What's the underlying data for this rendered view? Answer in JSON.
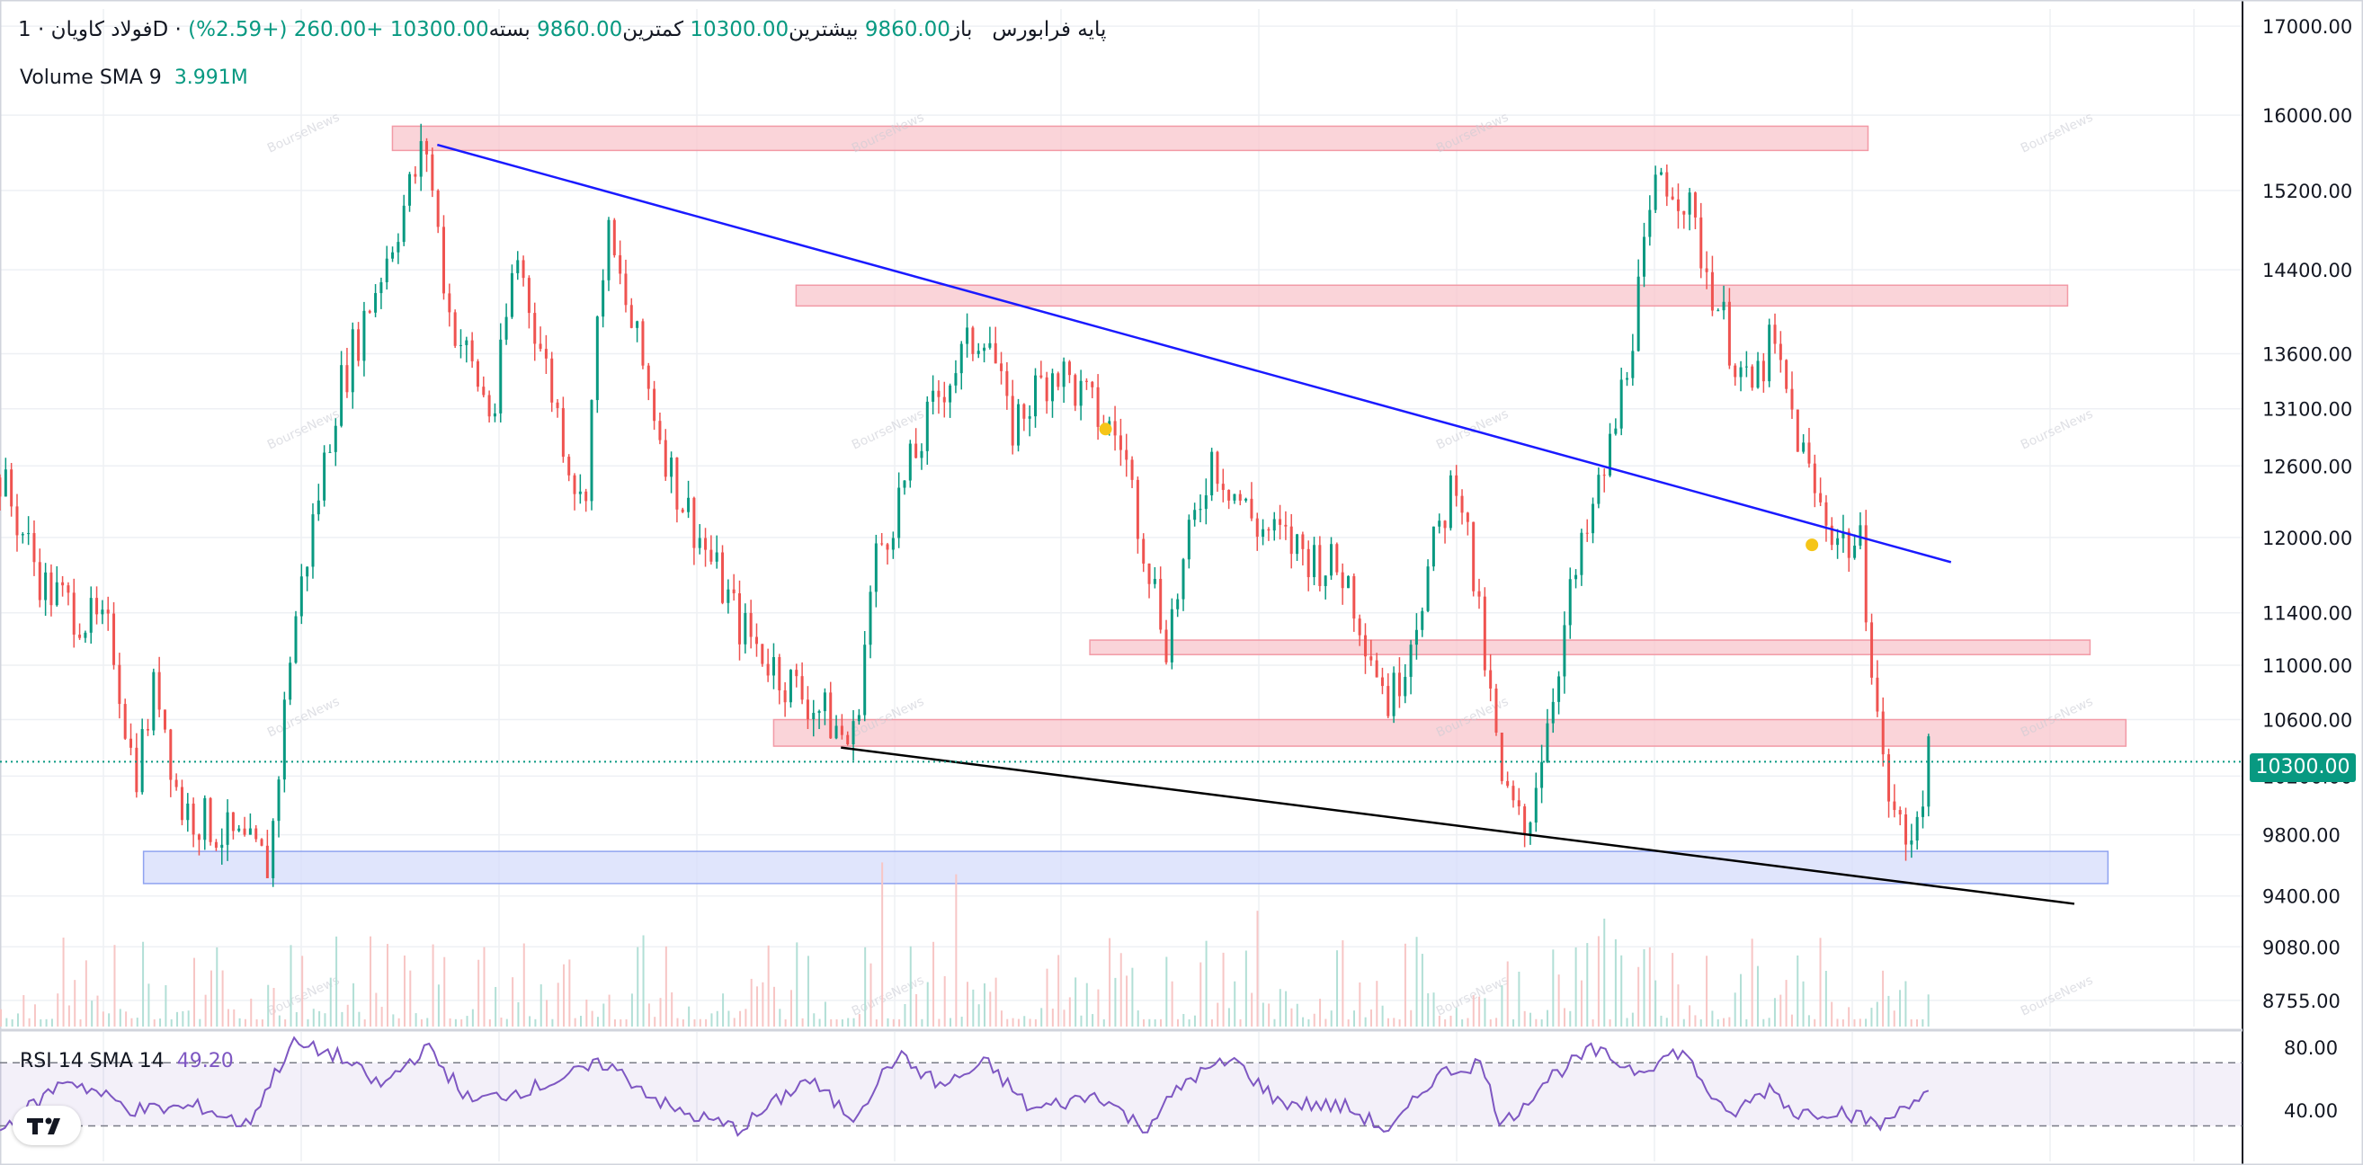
{
  "header": {
    "symbol": "فولاد کاویان",
    "sep1": "·",
    "interval": "1D",
    "sep2": "·",
    "market": "پایه فرابورس",
    "open_label": "باز",
    "open_value": "9860.00",
    "high_label": "بیشترین",
    "high_value": "10300.00",
    "low_label": "کمترین",
    "low_value": "9860.00",
    "close_label": "بسته",
    "close_value": "10300.00",
    "change": "+260.00",
    "change_pct": "(+2.59%)"
  },
  "volume_indicator": {
    "label": "Volume SMA 9",
    "value": "3.991M"
  },
  "rsi_indicator": {
    "label": "RSI 14 SMA 14",
    "value": "49.20"
  },
  "current_price": "10300.00",
  "watermark": "BourseNews",
  "colors": {
    "up": "#089981",
    "down": "#ef5350",
    "accent": "#089981",
    "trend_blue": "#1a1aff",
    "zone_red": "#f8c6cc",
    "zone_blue": "#d6dcfb",
    "rsi": "#7e57c2"
  },
  "chart_data": {
    "type": "candlestick",
    "y_axis": {
      "scale": "log",
      "ticks": [
        "17000.00",
        "16000.00",
        "15200.00",
        "14400.00",
        "13600.00",
        "13100.00",
        "12600.00",
        "12000.00",
        "11400.00",
        "11000.00",
        "10600.00",
        "10200.00",
        "9800.00",
        "9400.00",
        "9080.00",
        "8755.00"
      ],
      "range": [
        8600,
        17200
      ]
    },
    "price_path": [
      [
        0,
        12500
      ],
      [
        0.02,
        11600
      ],
      [
        0.05,
        11200
      ],
      [
        0.06,
        10200
      ],
      [
        0.07,
        10900
      ],
      [
        0.08,
        10000
      ],
      [
        0.11,
        9700
      ],
      [
        0.12,
        9600
      ],
      [
        0.13,
        11200
      ],
      [
        0.15,
        13200
      ],
      [
        0.19,
        15700
      ],
      [
        0.2,
        14000
      ],
      [
        0.22,
        13000
      ],
      [
        0.23,
        14600
      ],
      [
        0.26,
        12200
      ],
      [
        0.27,
        14800
      ],
      [
        0.3,
        12500
      ],
      [
        0.33,
        11300
      ],
      [
        0.35,
        10900
      ],
      [
        0.37,
        10600
      ],
      [
        0.38,
        10400
      ],
      [
        0.39,
        11800
      ],
      [
        0.42,
        13300
      ],
      [
        0.44,
        13900
      ],
      [
        0.45,
        12900
      ],
      [
        0.47,
        13500
      ],
      [
        0.5,
        12800
      ],
      [
        0.52,
        11200
      ],
      [
        0.54,
        12700
      ],
      [
        0.56,
        12100
      ],
      [
        0.58,
        11900
      ],
      [
        0.6,
        11700
      ],
      [
        0.62,
        10700
      ],
      [
        0.63,
        11300
      ],
      [
        0.65,
        12600
      ],
      [
        0.67,
        10100
      ],
      [
        0.68,
        9800
      ],
      [
        0.7,
        11500
      ],
      [
        0.72,
        12900
      ],
      [
        0.74,
        15400
      ],
      [
        0.75,
        15200
      ],
      [
        0.77,
        13800
      ],
      [
        0.78,
        13200
      ],
      [
        0.79,
        13700
      ],
      [
        0.81,
        12300
      ],
      [
        0.82,
        12000
      ],
      [
        0.83,
        11900
      ],
      [
        0.84,
        10200
      ],
      [
        0.85,
        9700
      ],
      [
        0.86,
        10300
      ]
    ],
    "trendlines": [
      {
        "name": "upper",
        "color": "#1a1aff",
        "from": [
          0.195,
          15680
        ],
        "to": [
          0.87,
          11800
        ]
      },
      {
        "name": "lower",
        "color": "#000000",
        "from": [
          0.375,
          10400
        ],
        "to": [
          0.925,
          9350
        ]
      }
    ],
    "zones": [
      {
        "color": "red",
        "from_x": 0.175,
        "to_x": 0.833,
        "low": 15620,
        "high": 15880
      },
      {
        "color": "red",
        "from_x": 0.355,
        "to_x": 0.922,
        "low": 14050,
        "high": 14250
      },
      {
        "color": "red",
        "from_x": 0.486,
        "to_x": 0.932,
        "low": 11080,
        "high": 11190
      },
      {
        "color": "red",
        "from_x": 0.345,
        "to_x": 0.948,
        "low": 10410,
        "high": 10600
      },
      {
        "color": "blue",
        "from_x": 0.064,
        "to_x": 0.94,
        "low": 9480,
        "high": 9690
      }
    ],
    "markers": [
      {
        "x": 0.493,
        "price": 12920
      },
      {
        "x": 0.808,
        "price": 11940
      }
    ],
    "rsi": {
      "ticks": [
        "80.00",
        "40.00"
      ],
      "upper_band": 70,
      "lower_band": 30,
      "path": [
        [
          0,
          27
        ],
        [
          0.03,
          60
        ],
        [
          0.06,
          40
        ],
        [
          0.09,
          42
        ],
        [
          0.11,
          30
        ],
        [
          0.13,
          82
        ],
        [
          0.15,
          75
        ],
        [
          0.17,
          55
        ],
        [
          0.19,
          80
        ],
        [
          0.21,
          45
        ],
        [
          0.24,
          55
        ],
        [
          0.27,
          70
        ],
        [
          0.3,
          40
        ],
        [
          0.33,
          28
        ],
        [
          0.36,
          60
        ],
        [
          0.38,
          35
        ],
        [
          0.4,
          75
        ],
        [
          0.42,
          55
        ],
        [
          0.44,
          70
        ],
        [
          0.46,
          40
        ],
        [
          0.49,
          50
        ],
        [
          0.51,
          28
        ],
        [
          0.53,
          60
        ],
        [
          0.55,
          72
        ],
        [
          0.57,
          45
        ],
        [
          0.6,
          42
        ],
        [
          0.62,
          26
        ],
        [
          0.64,
          62
        ],
        [
          0.66,
          70
        ],
        [
          0.67,
          30
        ],
        [
          0.69,
          60
        ],
        [
          0.71,
          78
        ],
        [
          0.73,
          65
        ],
        [
          0.75,
          78
        ],
        [
          0.77,
          35
        ],
        [
          0.79,
          55
        ],
        [
          0.8,
          38
        ],
        [
          0.82,
          40
        ],
        [
          0.84,
          30
        ],
        [
          0.85,
          45
        ],
        [
          0.86,
          50
        ]
      ]
    }
  }
}
